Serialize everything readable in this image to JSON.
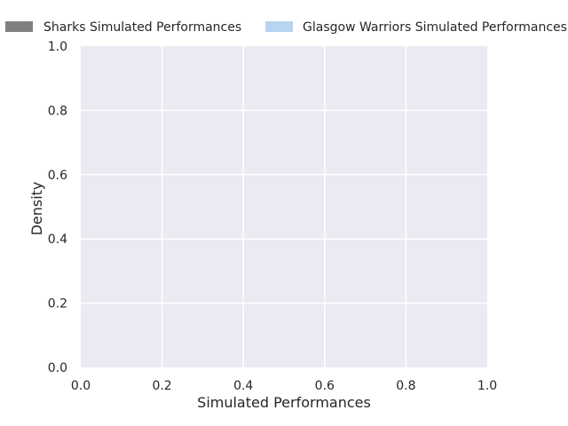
{
  "chart_data": {
    "type": "area",
    "title": "",
    "xlabel": "Simulated Performances",
    "ylabel": "Density",
    "xlim": [
      0.0,
      1.0
    ],
    "ylim": [
      0.0,
      1.0
    ],
    "grid": true,
    "legend_position": "top, outside plot",
    "x_ticks": [
      "0.0",
      "0.2",
      "0.4",
      "0.6",
      "0.8",
      "1.0"
    ],
    "y_ticks": [
      "0.0",
      "0.2",
      "0.4",
      "0.6",
      "0.8",
      "1.0"
    ],
    "series": [
      {
        "name": "Sharks Simulated Performances",
        "color": "#808080",
        "values": []
      },
      {
        "name": "Glasgow Warriors Simulated Performances",
        "color": "#b7d4f0",
        "values": []
      }
    ]
  }
}
